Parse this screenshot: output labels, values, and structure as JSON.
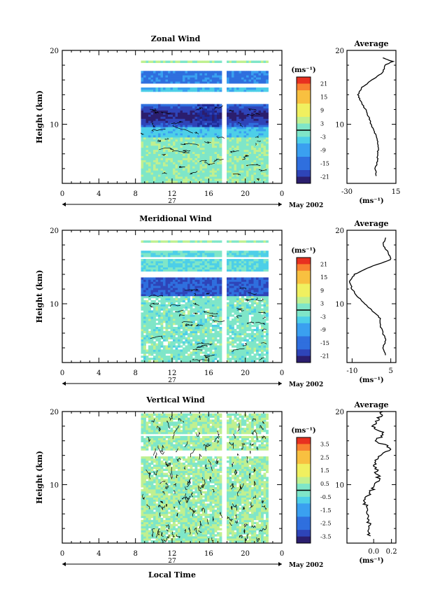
{
  "chart_data": [
    {
      "type": "heatmap",
      "title": "Zonal Wind",
      "ylabel": "Height (km)",
      "ylim": [
        2,
        20
      ],
      "xlim": [
        0,
        24
      ],
      "x_ticks": [
        "0",
        "4",
        "8",
        "12",
        "16",
        "20",
        "0"
      ],
      "y_ticks": [
        "10",
        "20"
      ],
      "date_labels": [
        "27",
        "May 2002"
      ],
      "colorbar": {
        "unit": "(ms⁻¹)",
        "range": [
          -24,
          24
        ],
        "tick_labels": [
          "21",
          "15",
          "9",
          "3",
          "-3",
          "-9",
          "-15",
          "-21"
        ]
      },
      "profile": {
        "title": "Average",
        "xlabel": "(ms⁻¹)",
        "xlim": [
          -30,
          15
        ],
        "x_ticks": [
          "-30",
          "15"
        ],
        "y_ticks": [
          "10",
          "20"
        ],
        "heights": [
          3,
          4,
          5,
          6,
          7,
          8,
          9,
          10,
          11,
          12,
          13,
          14,
          15,
          16,
          17,
          18,
          18.5,
          19
        ],
        "values": [
          -3,
          -4,
          -2,
          -2,
          -1,
          -2,
          -5,
          -8,
          -10,
          -13,
          -17,
          -20,
          -16,
          -7,
          3,
          5,
          12,
          3
        ]
      }
    },
    {
      "type": "heatmap",
      "title": "Meridional Wind",
      "ylabel": "Height (km)",
      "ylim": [
        2,
        20
      ],
      "xlim": [
        0,
        24
      ],
      "x_ticks": [
        "0",
        "4",
        "8",
        "12",
        "16",
        "20",
        "0"
      ],
      "y_ticks": [
        "10",
        "20"
      ],
      "date_labels": [
        "27",
        "May 2002"
      ],
      "colorbar": {
        "unit": "(ms⁻¹)",
        "range": [
          -24,
          24
        ],
        "tick_labels": [
          "21",
          "15",
          "9",
          "3",
          "-3",
          "-9",
          "-15",
          "-21"
        ]
      },
      "profile": {
        "title": "Average",
        "xlabel": "(ms⁻¹)",
        "xlim": [
          -12,
          7
        ],
        "x_ticks": [
          "-10",
          "5"
        ],
        "y_ticks": [
          "10",
          "20"
        ],
        "heights": [
          3,
          4,
          5,
          6,
          7,
          8,
          9,
          10,
          11,
          12,
          13,
          14,
          15,
          16,
          17,
          18,
          19
        ],
        "values": [
          3,
          2,
          3,
          2,
          1,
          1,
          -2,
          -5,
          -8,
          -10,
          -11,
          -9,
          -3,
          5,
          4,
          2,
          3
        ]
      }
    },
    {
      "type": "heatmap",
      "title": "Vertical Wind",
      "xlabel": "Local Time",
      "ylabel": "Height (km)",
      "ylim": [
        2,
        20
      ],
      "xlim": [
        0,
        24
      ],
      "x_ticks": [
        "0",
        "4",
        "8",
        "12",
        "16",
        "20",
        "0"
      ],
      "y_ticks": [
        "10",
        "20"
      ],
      "date_labels": [
        "27",
        "May 2002"
      ],
      "colorbar": {
        "unit": "(ms⁻¹)",
        "range": [
          -4,
          4
        ],
        "tick_labels": [
          "3.5",
          "2.5",
          "1.5",
          "0.5",
          "-0.5",
          "-1.5",
          "-2.5",
          "-3.5"
        ]
      },
      "profile": {
        "title": "Average",
        "xlabel": "(ms⁻¹)",
        "xlim": [
          -0.3,
          0.25
        ],
        "x_ticks": [
          "0.0",
          "0.2"
        ],
        "y_ticks": [
          "10",
          "20"
        ],
        "heights": [
          3,
          4,
          5,
          6,
          7,
          8,
          9,
          10,
          11,
          12,
          13,
          14,
          15,
          16,
          17,
          18,
          19,
          20
        ],
        "values": [
          -0.05,
          -0.04,
          -0.06,
          -0.05,
          -0.08,
          -0.12,
          -0.03,
          0.02,
          0.05,
          0.03,
          0.0,
          0.06,
          0.2,
          0.02,
          0.12,
          -0.02,
          0.05,
          0.1
        ]
      }
    }
  ],
  "colors": [
    "#2b1e6e",
    "#2e44b8",
    "#2f6fde",
    "#3aa0f0",
    "#4dcfe8",
    "#7fe6c8",
    "#c0f090",
    "#f0f060",
    "#f8c040",
    "#f88030",
    "#e83020"
  ]
}
